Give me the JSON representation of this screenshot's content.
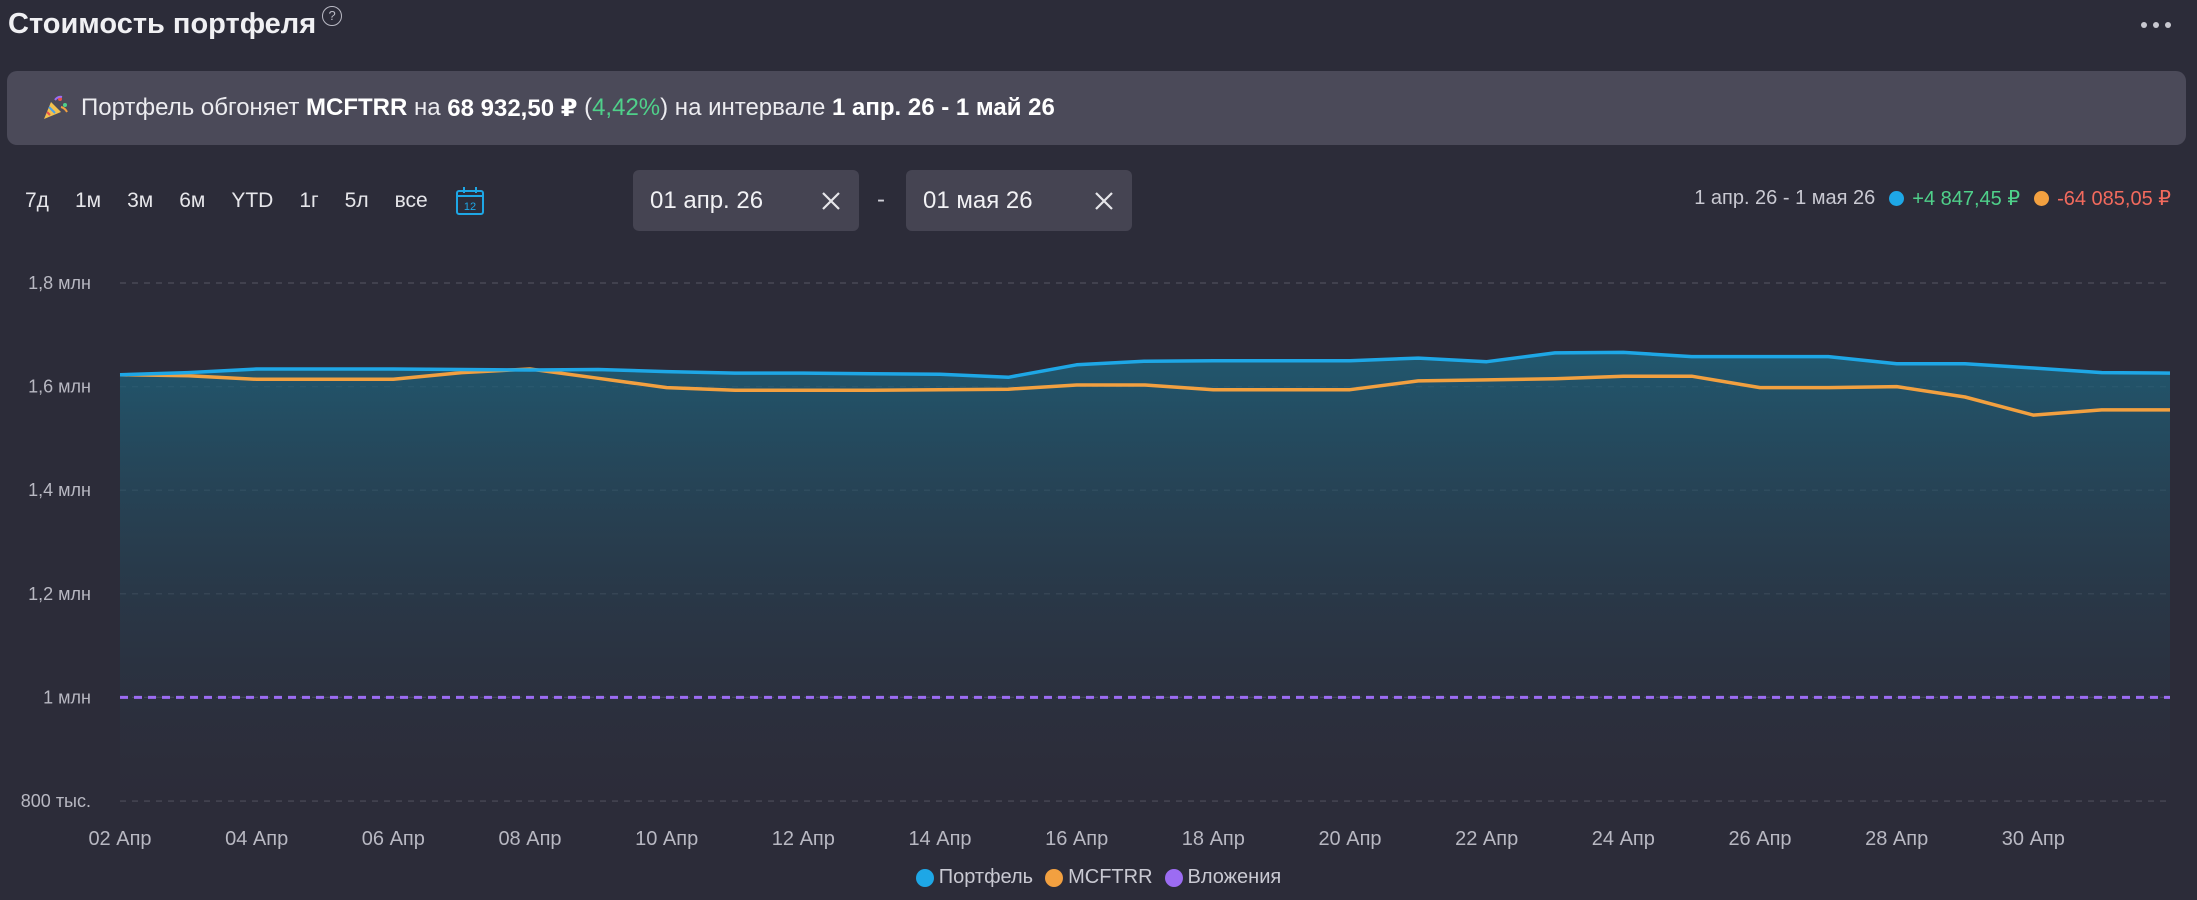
{
  "header": {
    "title": "Стоимость портфеля",
    "help": "?"
  },
  "banner": {
    "prefix": "Портфель обгоняет ",
    "benchmark": "MCFTRR",
    "mid": " на ",
    "amount": "68 932,50 ₽",
    "pct_open": " (",
    "pct": "4,42%",
    "pct_close": ")",
    "interval_text": " на интервале ",
    "interval": "1 апр. 26 - 1 май 26"
  },
  "periods": [
    "7д",
    "1м",
    "3м",
    "6м",
    "YTD",
    "1г",
    "5л",
    "все"
  ],
  "calendar_day": "12",
  "date_from": "01 апр. 26",
  "date_to": "01 мая 26",
  "date_separator": "-",
  "summary": {
    "range": "1 апр. 26 - 1 мая 26",
    "portfolio_change": "+4 847,45 ₽",
    "benchmark_change": "-64 085,05 ₽"
  },
  "colors": {
    "portfolio": "#1ea7e6",
    "benchmark": "#f2a040",
    "investments": "#9c6cf2"
  },
  "chart_data": {
    "type": "line",
    "x": [
      "02 Апр",
      "03 Апр",
      "04 Апр",
      "05 Апр",
      "06 Апр",
      "07 Апр",
      "08 Апр",
      "09 Апр",
      "10 Апр",
      "11 Апр",
      "12 Апр",
      "13 Апр",
      "14 Апр",
      "15 Апр",
      "16 Апр",
      "17 Апр",
      "18 Апр",
      "19 Апр",
      "20 Апр",
      "21 Апр",
      "22 Апр",
      "23 Апр",
      "24 Апр",
      "25 Апр",
      "26 Апр",
      "27 Апр",
      "28 Апр",
      "29 Апр",
      "30 Апр",
      "01 Май",
      "02 Май"
    ],
    "xticks": [
      "02 Апр",
      "04 Апр",
      "06 Апр",
      "08 Апр",
      "10 Апр",
      "12 Апр",
      "14 Апр",
      "16 Апр",
      "18 Апр",
      "20 Апр",
      "22 Апр",
      "24 Апр",
      "26 Апр",
      "28 Апр",
      "30 Апр"
    ],
    "yticks": [
      {
        "value": 800000,
        "label": "800 тыс."
      },
      {
        "value": 1000000,
        "label": "1 млн"
      },
      {
        "value": 1200000,
        "label": "1,2 млн"
      },
      {
        "value": 1400000,
        "label": "1,4 млн"
      },
      {
        "value": 1600000,
        "label": "1,6 млн"
      },
      {
        "value": 1800000,
        "label": "1,8 млн"
      }
    ],
    "ylim": [
      800000,
      1800000
    ],
    "grid": true,
    "legend": "bottom-center",
    "series": [
      {
        "name": "Портфель",
        "values": [
          1623000,
          1627000,
          1634000,
          1634000,
          1634000,
          1633000,
          1632000,
          1633000,
          1629000,
          1626000,
          1626000,
          1625000,
          1624000,
          1618000,
          1642000,
          1649000,
          1650000,
          1650000,
          1650000,
          1655000,
          1648000,
          1665000,
          1666000,
          1658000,
          1658000,
          1658000,
          1644000,
          1644000,
          1636000,
          1627000,
          1626000
        ]
      },
      {
        "name": "MCFTRR",
        "values": [
          1623000,
          1621000,
          1614000,
          1614000,
          1614000,
          1627000,
          1634000,
          1616000,
          1598000,
          1593000,
          1593000,
          1593000,
          1594000,
          1595000,
          1603000,
          1603000,
          1594000,
          1594000,
          1594000,
          1611000,
          1613000,
          1615000,
          1620000,
          1620000,
          1598000,
          1598000,
          1600000,
          1580000,
          1545000,
          1555000,
          1555000
        ]
      },
      {
        "name": "Вложения",
        "values": [
          1000000,
          1000000,
          1000000,
          1000000,
          1000000,
          1000000,
          1000000,
          1000000,
          1000000,
          1000000,
          1000000,
          1000000,
          1000000,
          1000000,
          1000000,
          1000000,
          1000000,
          1000000,
          1000000,
          1000000,
          1000000,
          1000000,
          1000000,
          1000000,
          1000000,
          1000000,
          1000000,
          1000000,
          1000000,
          1000000,
          1000000
        ]
      }
    ]
  }
}
